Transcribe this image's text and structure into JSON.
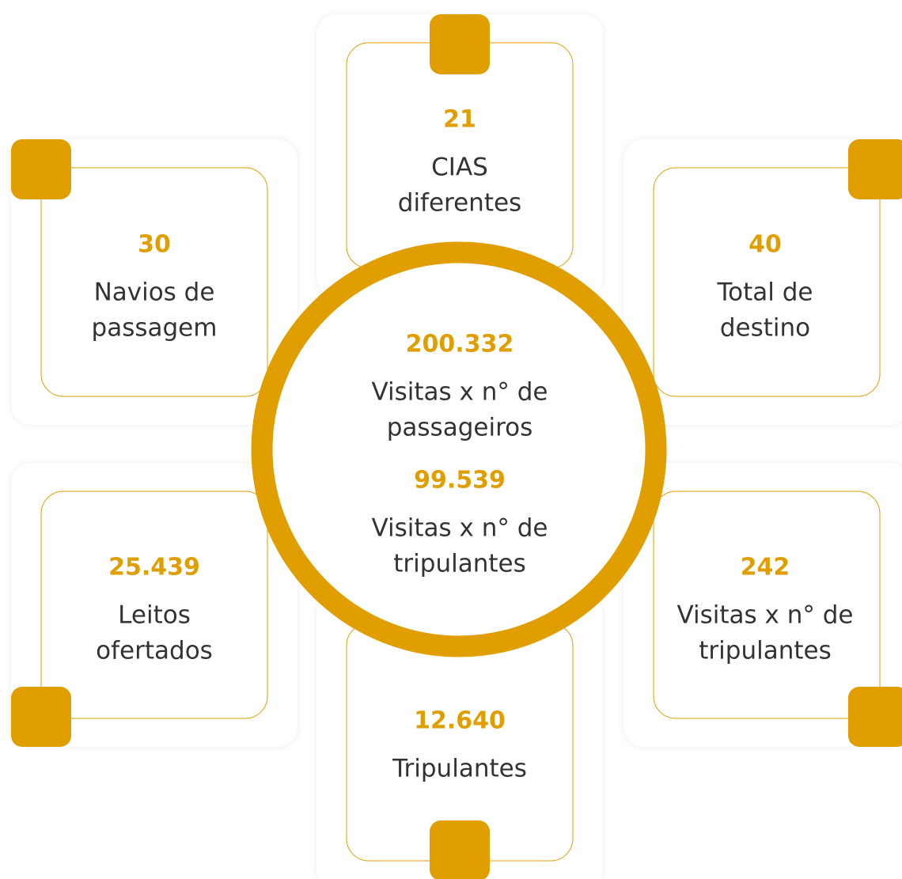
{
  "cards": [
    {
      "value": "21",
      "label": [
        "CIAS",
        "diferentes"
      ]
    },
    {
      "value": "30",
      "label": [
        "Navios de",
        "passagem"
      ]
    },
    {
      "value": "40",
      "label": [
        "Total de",
        "destino"
      ]
    },
    {
      "value": "25.439",
      "label": [
        "Leitos",
        "ofertados"
      ]
    },
    {
      "value": "242",
      "label": [
        "Visitas x n° de",
        "tripulantes"
      ]
    },
    {
      "value": "12.640",
      "label": [
        "Tripulantes"
      ]
    }
  ],
  "center": [
    {
      "value": "200.332",
      "label": [
        "Visitas x n° de",
        "passageiros"
      ]
    },
    {
      "value": "99.539",
      "label": [
        "Visitas x n° de",
        "tripulantes"
      ]
    }
  ]
}
